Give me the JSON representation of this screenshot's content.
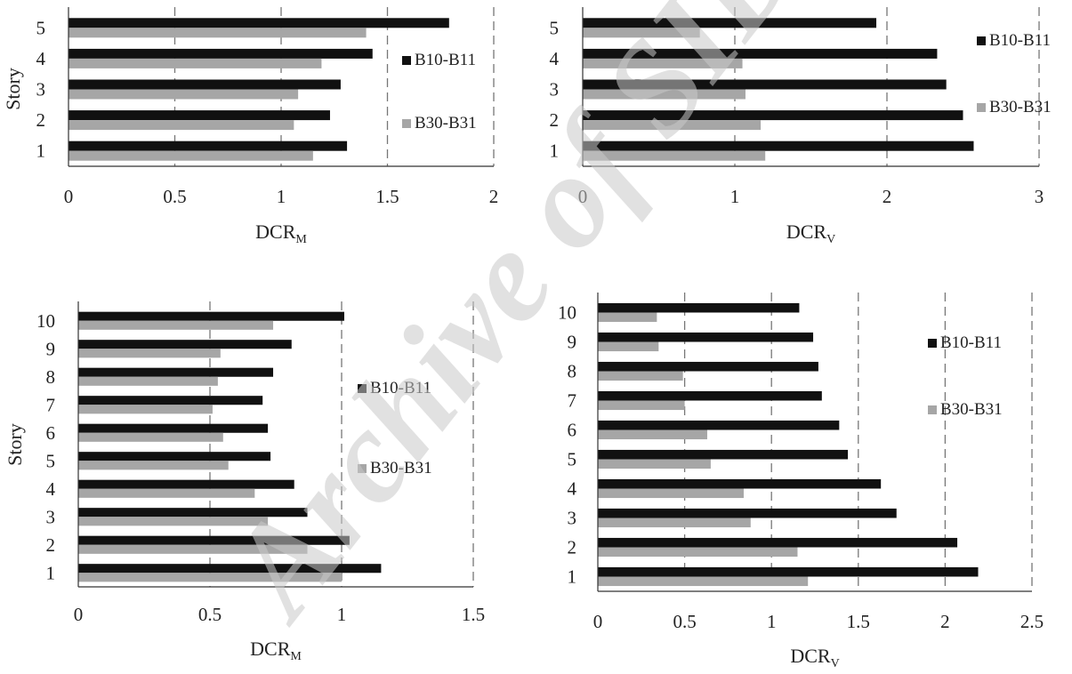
{
  "watermark": "Archive of SID",
  "colors": {
    "series1": "#111111",
    "series2": "#a6a6a6",
    "watermark": "#c8c8c8",
    "axis": "#333333",
    "grid": "#777777"
  },
  "chart_data": [
    {
      "id": "top-left",
      "type": "bar",
      "orientation": "horizontal",
      "categories": [
        "1",
        "2",
        "3",
        "4",
        "5"
      ],
      "series": [
        {
          "name": "B10-B11",
          "values": [
            1.31,
            1.23,
            1.28,
            1.43,
            1.79
          ]
        },
        {
          "name": "B30-B31",
          "values": [
            1.15,
            1.06,
            1.08,
            1.19,
            1.4
          ]
        }
      ],
      "xlim": [
        0,
        2
      ],
      "xticks": [
        "0",
        "0.5",
        "1",
        "1.5",
        "2"
      ],
      "xtick_values": [
        0,
        0.5,
        1,
        1.5,
        2
      ],
      "xlabel": "DCR",
      "xlabel_sub": "M",
      "ylabel": "Story",
      "grid": "vertical dashed",
      "legend": "right"
    },
    {
      "id": "top-right",
      "type": "bar",
      "orientation": "horizontal",
      "categories": [
        "1",
        "2",
        "3",
        "4",
        "5"
      ],
      "series": [
        {
          "name": "B10-B11",
          "values": [
            2.57,
            2.5,
            2.39,
            2.33,
            1.93
          ]
        },
        {
          "name": "B30-B31",
          "values": [
            1.2,
            1.17,
            1.07,
            1.05,
            0.77
          ]
        }
      ],
      "xlim": [
        0,
        3
      ],
      "xticks": [
        "0",
        "1",
        "2",
        "3"
      ],
      "xtick_values": [
        0,
        1,
        2,
        3
      ],
      "xlabel": "DCR",
      "xlabel_sub": "V",
      "ylabel": "",
      "grid": "vertical dashed",
      "legend": "right"
    },
    {
      "id": "bottom-left",
      "type": "bar",
      "orientation": "horizontal",
      "categories": [
        "1",
        "2",
        "3",
        "4",
        "5",
        "6",
        "7",
        "8",
        "9",
        "10"
      ],
      "series": [
        {
          "name": "B10-B11",
          "values": [
            1.15,
            1.03,
            0.87,
            0.82,
            0.73,
            0.72,
            0.7,
            0.74,
            0.81,
            1.01
          ]
        },
        {
          "name": "B30-B31",
          "values": [
            1.0,
            0.87,
            0.72,
            0.67,
            0.57,
            0.55,
            0.51,
            0.53,
            0.54,
            0.74
          ]
        }
      ],
      "xlim": [
        0,
        1.5
      ],
      "xticks": [
        "0",
        "0.5",
        "1",
        "1.5"
      ],
      "xtick_values": [
        0,
        0.5,
        1,
        1.5
      ],
      "xlabel": "DCR",
      "xlabel_sub": "M",
      "ylabel": "Story",
      "grid": "vertical dashed",
      "legend": "right"
    },
    {
      "id": "bottom-right",
      "type": "bar",
      "orientation": "horizontal",
      "categories": [
        "1",
        "2",
        "3",
        "4",
        "5",
        "6",
        "7",
        "8",
        "9",
        "10"
      ],
      "series": [
        {
          "name": "B10-B11",
          "values": [
            2.19,
            2.07,
            1.72,
            1.63,
            1.44,
            1.39,
            1.29,
            1.27,
            1.24,
            1.16
          ]
        },
        {
          "name": "B30-B31",
          "values": [
            1.21,
            1.15,
            0.88,
            0.84,
            0.65,
            0.63,
            0.5,
            0.49,
            0.35,
            0.34
          ]
        }
      ],
      "xlim": [
        0,
        2.5
      ],
      "xticks": [
        "0",
        "0.5",
        "1",
        "1.5",
        "2",
        "2.5"
      ],
      "xtick_values": [
        0,
        0.5,
        1,
        1.5,
        2,
        2.5
      ],
      "xlabel": "DCR",
      "xlabel_sub": "V",
      "ylabel": "",
      "grid": "vertical dashed",
      "legend": "right"
    }
  ]
}
